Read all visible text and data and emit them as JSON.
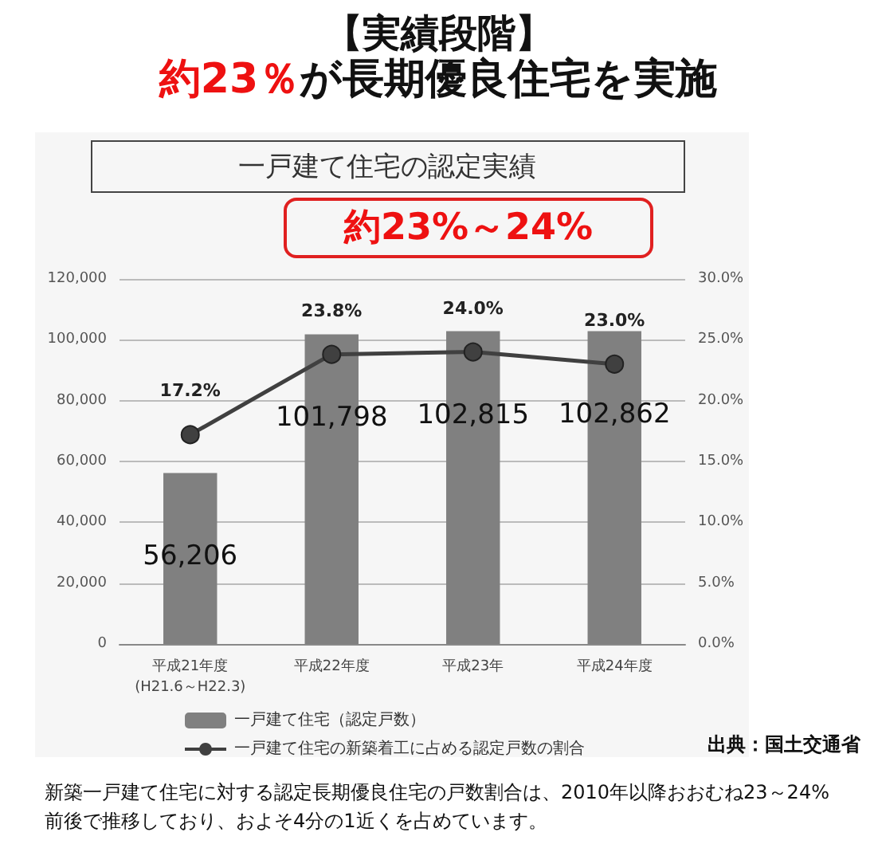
{
  "chart_data": {
    "type": "bar",
    "title": "【実績段階】",
    "subtitle": "約23％が長期優良住宅を実施",
    "categories": [
      "平成21年度\n(H21.6～H22.3)",
      "平成22年度",
      "平成23年",
      "平成24年度"
    ],
    "series": [
      {
        "name": "一戸建て住宅（認定戸数）",
        "color": "#808080",
        "values": [
          56206,
          101798,
          102815,
          102862
        ],
        "value_labels": [
          "56,206",
          "101,798",
          "102,815",
          "102,862"
        ]
      },
      {
        "name": "一戸建て住宅の新築着工に占める認定戸数の割合",
        "type": "line",
        "axis": "y2",
        "color": "#404040",
        "marker": "circle",
        "values": [
          17.2,
          23.8,
          24.0,
          23.0
        ],
        "value_labels": [
          "17.2%",
          "23.8%",
          "24.0%",
          "23.0%"
        ]
      }
    ],
    "ylim": [
      0,
      120000
    ],
    "yticks": [
      {
        "value": 0,
        "label": "0"
      },
      {
        "value": 20000,
        "label": "20,000"
      },
      {
        "value": 40000,
        "label": "40,000"
      },
      {
        "value": 60000,
        "label": "60,000"
      },
      {
        "value": 80000,
        "label": "80,000"
      },
      {
        "value": 100000,
        "label": "100,000"
      },
      {
        "value": 120000,
        "label": "120,000"
      }
    ],
    "y2lim": [
      0,
      30
    ],
    "y2ticks": [
      {
        "value": 0,
        "label": "0.0%"
      },
      {
        "value": 5,
        "label": "5.0%"
      },
      {
        "value": 10,
        "label": "10.0%"
      },
      {
        "value": 15,
        "label": "15.0%"
      },
      {
        "value": 20,
        "label": "20.0%"
      },
      {
        "value": 25,
        "label": "25.0%"
      },
      {
        "value": 30,
        "label": "30.0%"
      }
    ],
    "grid": "y",
    "legend": "bottom",
    "annotations": [
      "一戸建て住宅の認定実績",
      "約23%～24%",
      "出典：国土交通省",
      "新築一戸建て住宅に対する認定長期優良住宅の戸数割合は、2010年以降おおむね23～24%前後で推移しており、およそ4分の1近くを占めています。"
    ]
  }
}
